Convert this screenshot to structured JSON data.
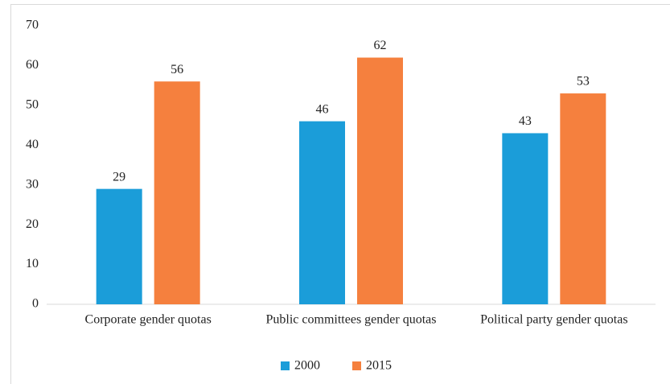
{
  "chart_data": {
    "type": "bar",
    "categories": [
      "Corporate gender quotas",
      "Public committees gender quotas",
      "Political party gender quotas"
    ],
    "series": [
      {
        "name": "2000",
        "color": "#1b9dd9",
        "values": [
          29,
          46,
          43
        ]
      },
      {
        "name": "2015",
        "color": "#f5803e",
        "values": [
          56,
          62,
          53
        ]
      }
    ],
    "ylim": [
      0,
      70
    ],
    "yticks": [
      0,
      10,
      20,
      30,
      40,
      50,
      60,
      70
    ],
    "grid": false,
    "legend": "bottom"
  }
}
